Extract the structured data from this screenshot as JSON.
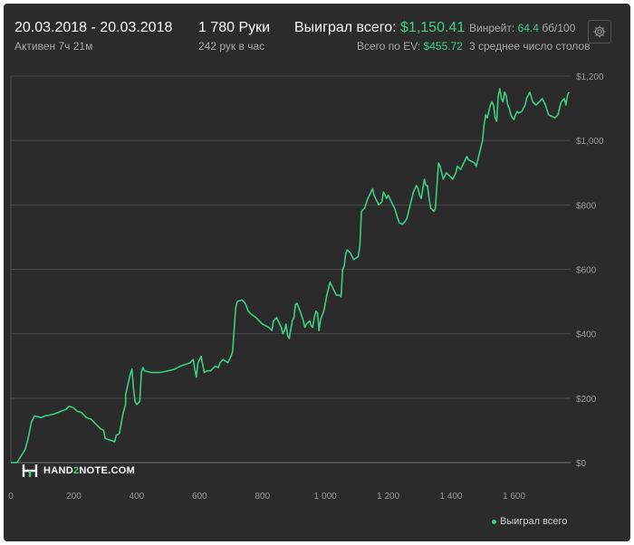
{
  "header": {
    "date_range": "20.03.2018 - 20.03.2018",
    "active_time": "Активен 7ч 21м",
    "hands": "1 780 Руки",
    "hands_per_hour": "242 рук в час",
    "won_label": "Выиграл всего:",
    "won_value": "$1,150.41",
    "ev_label": "Всего по EV:",
    "ev_value": "$455.72",
    "winrate_label": "Винрейт:",
    "winrate_value": "64.4",
    "winrate_unit": "бб/100",
    "avg_tables": "3 среднее число столов"
  },
  "logo": {
    "text_a": "HAND",
    "text_b": "2",
    "text_c": "NOTE.COM"
  },
  "colors": {
    "panel": "#2b2b2b",
    "line": "#3ccf86",
    "grid": "#4a4a4a",
    "axis_text": "#9a9a9a"
  },
  "icons": {
    "settings": "gear-icon"
  },
  "chart_data": {
    "type": "line",
    "xlim": [
      0,
      1780
    ],
    "ylim": [
      0,
      1200
    ],
    "x_ticks": [
      0,
      200,
      400,
      600,
      800,
      1000,
      1200,
      1400,
      1600
    ],
    "x_tick_labels": [
      "0",
      "200",
      "400",
      "600",
      "800",
      "1 000",
      "1 200",
      "1 400",
      "1 600"
    ],
    "y_ticks": [
      0,
      200,
      400,
      600,
      800,
      1000,
      1200
    ],
    "y_tick_labels": [
      "$0",
      "$200",
      "$400",
      "$600",
      "$800",
      "$1,000",
      "$1,200"
    ],
    "grid": true,
    "legend": "bottom-right",
    "series": [
      {
        "name": "Выиграл всего",
        "color": "#3ccf86",
        "points": [
          [
            0,
            0
          ],
          [
            20,
            0
          ],
          [
            35,
            25
          ],
          [
            45,
            40
          ],
          [
            55,
            75
          ],
          [
            65,
            125
          ],
          [
            75,
            145
          ],
          [
            95,
            140
          ],
          [
            110,
            145
          ],
          [
            135,
            150
          ],
          [
            160,
            160
          ],
          [
            175,
            165
          ],
          [
            185,
            175
          ],
          [
            200,
            170
          ],
          [
            210,
            160
          ],
          [
            225,
            155
          ],
          [
            240,
            140
          ],
          [
            255,
            135
          ],
          [
            270,
            120
          ],
          [
            285,
            105
          ],
          [
            295,
            100
          ],
          [
            300,
            75
          ],
          [
            315,
            70
          ],
          [
            330,
            65
          ],
          [
            335,
            85
          ],
          [
            345,
            90
          ],
          [
            355,
            145
          ],
          [
            360,
            165
          ],
          [
            365,
            180
          ],
          [
            365,
            210
          ],
          [
            375,
            255
          ],
          [
            380,
            275
          ],
          [
            385,
            290
          ],
          [
            390,
            230
          ],
          [
            395,
            190
          ],
          [
            400,
            180
          ],
          [
            405,
            185
          ],
          [
            410,
            190
          ],
          [
            415,
            280
          ],
          [
            420,
            295
          ],
          [
            425,
            285
          ],
          [
            445,
            280
          ],
          [
            475,
            280
          ],
          [
            500,
            285
          ],
          [
            520,
            290
          ],
          [
            540,
            300
          ],
          [
            555,
            305
          ],
          [
            570,
            310
          ],
          [
            580,
            320
          ],
          [
            585,
            290
          ],
          [
            590,
            265
          ],
          [
            595,
            310
          ],
          [
            605,
            330
          ],
          [
            615,
            280
          ],
          [
            625,
            285
          ],
          [
            635,
            285
          ],
          [
            650,
            300
          ],
          [
            660,
            295
          ],
          [
            665,
            310
          ],
          [
            675,
            320
          ],
          [
            690,
            310
          ],
          [
            700,
            330
          ],
          [
            705,
            345
          ],
          [
            715,
            480
          ],
          [
            720,
            500
          ],
          [
            735,
            505
          ],
          [
            745,
            495
          ],
          [
            755,
            470
          ],
          [
            765,
            460
          ],
          [
            780,
            450
          ],
          [
            790,
            440
          ],
          [
            800,
            430
          ],
          [
            820,
            420
          ],
          [
            830,
            410
          ],
          [
            835,
            440
          ],
          [
            845,
            450
          ],
          [
            855,
            430
          ],
          [
            860,
            420
          ],
          [
            865,
            400
          ],
          [
            870,
            410
          ],
          [
            875,
            430
          ],
          [
            880,
            395
          ],
          [
            885,
            385
          ],
          [
            895,
            440
          ],
          [
            900,
            450
          ],
          [
            905,
            490
          ],
          [
            910,
            495
          ],
          [
            920,
            470
          ],
          [
            930,
            440
          ],
          [
            935,
            420
          ],
          [
            940,
            430
          ],
          [
            950,
            440
          ],
          [
            955,
            425
          ],
          [
            960,
            420
          ],
          [
            965,
            450
          ],
          [
            970,
            470
          ],
          [
            975,
            465
          ],
          [
            980,
            410
          ],
          [
            985,
            445
          ],
          [
            995,
            470
          ],
          [
            1005,
            520
          ],
          [
            1015,
            560
          ],
          [
            1020,
            550
          ],
          [
            1030,
            530
          ],
          [
            1035,
            520
          ],
          [
            1045,
            520
          ],
          [
            1050,
            515
          ],
          [
            1055,
            600
          ],
          [
            1060,
            610
          ],
          [
            1065,
            650
          ],
          [
            1070,
            660
          ],
          [
            1080,
            650
          ],
          [
            1090,
            630
          ],
          [
            1105,
            640
          ],
          [
            1110,
            675
          ],
          [
            1115,
            780
          ],
          [
            1125,
            790
          ],
          [
            1135,
            820
          ],
          [
            1140,
            830
          ],
          [
            1150,
            850
          ],
          [
            1155,
            830
          ],
          [
            1160,
            820
          ],
          [
            1170,
            800
          ],
          [
            1180,
            810
          ],
          [
            1185,
            840
          ],
          [
            1190,
            830
          ],
          [
            1195,
            820
          ],
          [
            1200,
            830
          ],
          [
            1210,
            810
          ],
          [
            1215,
            800
          ],
          [
            1220,
            790
          ],
          [
            1230,
            760
          ],
          [
            1235,
            745
          ],
          [
            1245,
            740
          ],
          [
            1255,
            750
          ],
          [
            1260,
            760
          ],
          [
            1265,
            780
          ],
          [
            1270,
            800
          ],
          [
            1275,
            820
          ],
          [
            1280,
            840
          ],
          [
            1290,
            860
          ],
          [
            1295,
            850
          ],
          [
            1300,
            830
          ],
          [
            1305,
            820
          ],
          [
            1310,
            850
          ],
          [
            1315,
            880
          ],
          [
            1320,
            860
          ],
          [
            1325,
            860
          ],
          [
            1330,
            820
          ],
          [
            1335,
            790
          ],
          [
            1345,
            780
          ],
          [
            1350,
            790
          ],
          [
            1355,
            860
          ],
          [
            1360,
            930
          ],
          [
            1365,
            920
          ],
          [
            1375,
            880
          ],
          [
            1385,
            900
          ],
          [
            1395,
            890
          ],
          [
            1405,
            880
          ],
          [
            1415,
            900
          ],
          [
            1420,
            920
          ],
          [
            1430,
            910
          ],
          [
            1440,
            930
          ],
          [
            1450,
            950
          ],
          [
            1455,
            940
          ],
          [
            1465,
            935
          ],
          [
            1475,
            930
          ],
          [
            1480,
            920
          ],
          [
            1490,
            960
          ],
          [
            1500,
            1000
          ],
          [
            1505,
            1050
          ],
          [
            1510,
            1080
          ],
          [
            1515,
            1070
          ],
          [
            1520,
            1090
          ],
          [
            1525,
            1110
          ],
          [
            1530,
            1120
          ],
          [
            1535,
            1110
          ],
          [
            1540,
            1070
          ],
          [
            1545,
            1060
          ],
          [
            1550,
            1140
          ],
          [
            1555,
            1160
          ],
          [
            1560,
            1130
          ],
          [
            1565,
            1120
          ],
          [
            1570,
            1150
          ],
          [
            1575,
            1140
          ],
          [
            1580,
            1110
          ],
          [
            1585,
            1100
          ],
          [
            1590,
            1080
          ],
          [
            1595,
            1070
          ],
          [
            1600,
            1065
          ],
          [
            1605,
            1080
          ],
          [
            1610,
            1090
          ],
          [
            1615,
            1085
          ],
          [
            1625,
            1090
          ],
          [
            1630,
            1100
          ],
          [
            1635,
            1110
          ],
          [
            1640,
            1130
          ],
          [
            1650,
            1150
          ],
          [
            1660,
            1120
          ],
          [
            1670,
            1110
          ],
          [
            1680,
            1120
          ],
          [
            1690,
            1130
          ],
          [
            1700,
            1110
          ],
          [
            1710,
            1080
          ],
          [
            1720,
            1075
          ],
          [
            1730,
            1070
          ],
          [
            1740,
            1080
          ],
          [
            1745,
            1100
          ],
          [
            1750,
            1120
          ],
          [
            1760,
            1130
          ],
          [
            1765,
            1110
          ],
          [
            1770,
            1140
          ],
          [
            1775,
            1150
          ]
        ]
      }
    ]
  }
}
